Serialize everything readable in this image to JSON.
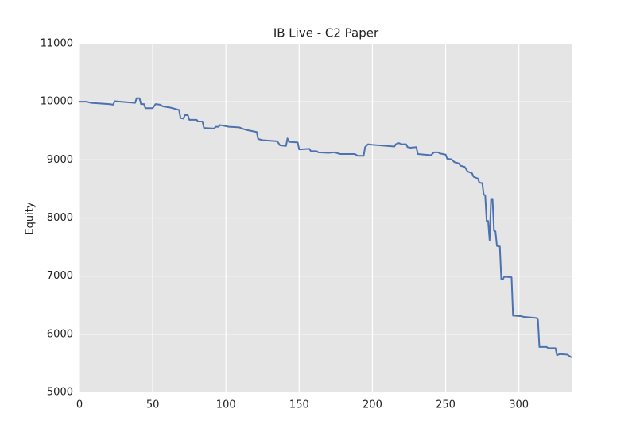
{
  "chart_data": {
    "type": "line",
    "title": "IB Live - C2 Paper",
    "ylabel": "Equity",
    "color": "#4c72b0",
    "x": [
      0,
      5,
      8,
      20,
      23,
      24,
      28,
      38,
      39,
      41,
      42,
      44,
      45,
      50,
      52,
      55,
      57,
      62,
      68,
      69,
      71,
      72,
      74,
      75,
      80,
      81,
      84,
      85,
      92,
      93,
      95,
      96,
      100,
      102,
      109,
      112,
      115,
      121,
      122,
      125,
      135,
      137,
      141,
      142,
      143,
      149,
      150,
      157,
      158,
      162,
      163,
      170,
      174,
      178,
      188,
      190,
      194,
      195,
      197,
      200,
      215,
      216,
      218,
      220,
      223,
      224,
      226,
      230,
      231,
      240,
      242,
      245,
      246,
      250,
      251,
      254,
      256,
      259,
      260,
      263,
      265,
      268,
      269,
      272,
      273,
      275,
      276,
      277,
      278,
      279,
      280,
      281,
      282,
      283,
      284,
      285,
      287,
      288,
      289,
      290,
      295,
      296,
      302,
      303,
      312,
      313,
      314,
      319,
      320,
      325,
      326,
      328,
      333,
      336
    ],
    "values": [
      10000,
      10000,
      9980,
      9960,
      9950,
      10010,
      10000,
      9980,
      10060,
      10060,
      9960,
      9960,
      9890,
      9890,
      9960,
      9950,
      9920,
      9900,
      9860,
      9720,
      9710,
      9770,
      9770,
      9690,
      9690,
      9660,
      9660,
      9550,
      9540,
      9570,
      9570,
      9600,
      9580,
      9570,
      9560,
      9530,
      9510,
      9480,
      9360,
      9340,
      9320,
      9250,
      9240,
      9370,
      9310,
      9300,
      9180,
      9190,
      9150,
      9150,
      9130,
      9120,
      9130,
      9100,
      9100,
      9070,
      9070,
      9220,
      9270,
      9260,
      9230,
      9270,
      9290,
      9270,
      9270,
      9220,
      9210,
      9220,
      9100,
      9080,
      9130,
      9130,
      9110,
      9090,
      9020,
      9010,
      8960,
      8940,
      8900,
      8880,
      8800,
      8770,
      8710,
      8680,
      8610,
      8600,
      8400,
      8390,
      7950,
      7950,
      7620,
      8330,
      8330,
      7780,
      7770,
      7520,
      7510,
      6940,
      6940,
      6990,
      6980,
      6320,
      6310,
      6300,
      6280,
      6250,
      5780,
      5780,
      5760,
      5760,
      5640,
      5660,
      5650,
      5600
    ],
    "xlim": [
      0,
      336
    ],
    "xticks": [
      0,
      50,
      100,
      150,
      200,
      250,
      300
    ],
    "ylim": [
      5000,
      11000
    ],
    "yticks": [
      5000,
      6000,
      7000,
      8000,
      9000,
      10000,
      11000
    ],
    "grid": true
  }
}
